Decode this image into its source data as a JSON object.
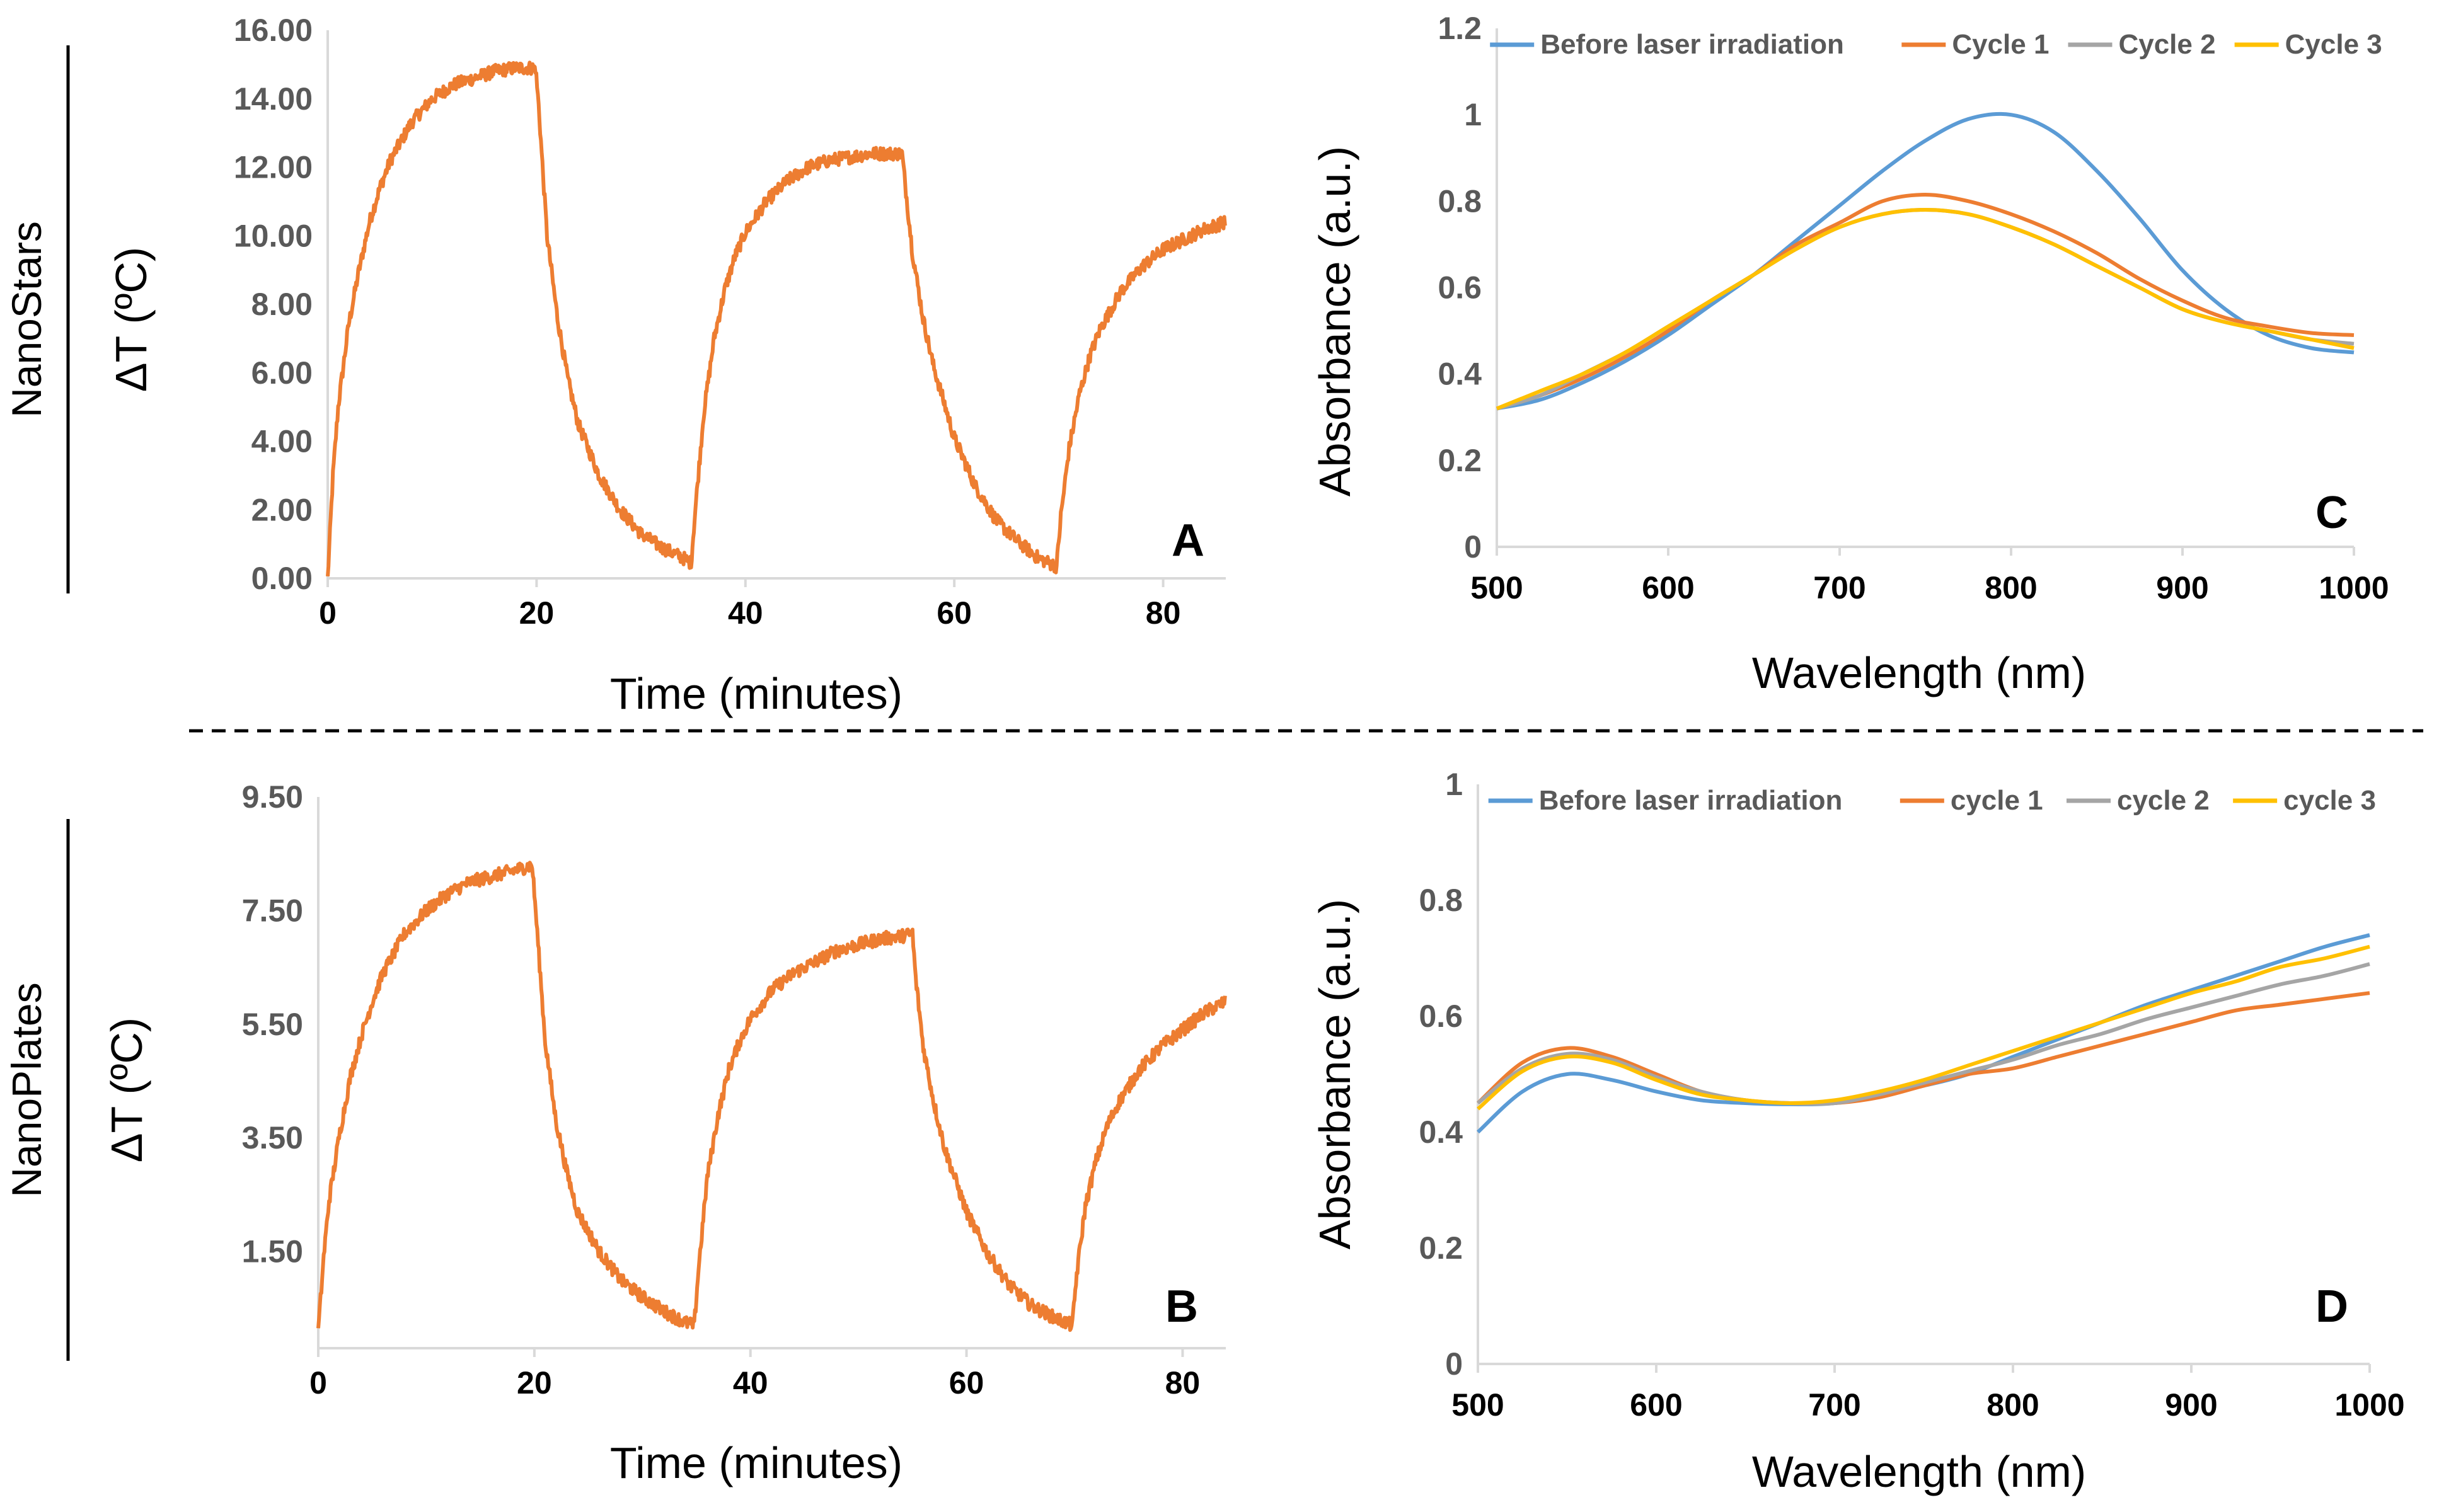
{
  "row_labels": {
    "top": "NanoStars",
    "bottom": "NanoPlates"
  },
  "colors": {
    "heating": "#ED7D31",
    "before": "#5B9BD5",
    "cycle1": "#ED7D31",
    "cycle2": "#A5A5A5",
    "cycle3": "#FFC000",
    "axis": "#D9D9D9",
    "tick_text": "#595959",
    "title_text": "#000000"
  },
  "chart_data": [
    {
      "id": "A",
      "type": "line",
      "panel_letter": "A",
      "xlabel": "Time (minutes)",
      "ylabel": "ΔT (ºC)",
      "xlim": [
        0,
        86
      ],
      "ylim": [
        0,
        16
      ],
      "xticks": [
        0,
        20,
        40,
        60,
        80
      ],
      "xtick_labels": [
        "0",
        "20",
        "40",
        "60",
        "80"
      ],
      "yticks": [
        0,
        2,
        4,
        6,
        8,
        10,
        12,
        14,
        16
      ],
      "ytick_labels": [
        "0.00",
        "2.00",
        "4.00",
        "6.00",
        "8.00",
        "10.00",
        "12.00",
        "14.00",
        "16.00"
      ],
      "series": [
        {
          "name": "ΔT",
          "color": "#ED7D31",
          "x": [
            0,
            0.5,
            1,
            2,
            3,
            4,
            5,
            6,
            8,
            10,
            12,
            14,
            16,
            18,
            19.9,
            20.2,
            21,
            22,
            23,
            24,
            26,
            28,
            30,
            32,
            34,
            34.8,
            35.2,
            36,
            37,
            38,
            39,
            40,
            42,
            44,
            46,
            48,
            50,
            52,
            54,
            55,
            55.3,
            56,
            57,
            58,
            60,
            62,
            64,
            66,
            68,
            69.8,
            70.2,
            71,
            72,
            73,
            74,
            76,
            78,
            80,
            82,
            84,
            86
          ],
          "y": [
            0,
            3.0,
            5.0,
            7.4,
            9.0,
            10.4,
            11.4,
            12.2,
            13.3,
            14.0,
            14.4,
            14.6,
            14.8,
            14.9,
            14.9,
            13.8,
            10.0,
            7.6,
            5.8,
            4.5,
            3.0,
            2.0,
            1.3,
            0.9,
            0.6,
            0.45,
            2.0,
            4.8,
            7.0,
            8.4,
            9.4,
            10.1,
            11.0,
            11.6,
            12.0,
            12.2,
            12.3,
            12.4,
            12.4,
            12.4,
            11.5,
            9.5,
            7.6,
            6.2,
            4.1,
            2.7,
            1.7,
            1.1,
            0.6,
            0.35,
            1.8,
            3.8,
            5.4,
            6.5,
            7.3,
            8.4,
            9.1,
            9.6,
            9.9,
            10.2,
            10.4
          ]
        }
      ]
    },
    {
      "id": "B",
      "type": "line",
      "panel_letter": "B",
      "xlabel": "Time (minutes)",
      "ylabel": "ΔT (ºC)",
      "xlim": [
        0,
        84
      ],
      "ylim": [
        -0.2,
        9.5
      ],
      "xticks": [
        0,
        20,
        40,
        60,
        80
      ],
      "xtick_labels": [
        "0",
        "20",
        "40",
        "60",
        "80"
      ],
      "yticks": [
        1.5,
        3.5,
        5.5,
        7.5,
        9.5
      ],
      "ytick_labels": [
        "1.50",
        "3.50",
        "5.50",
        "7.50",
        "9.50"
      ],
      "series": [
        {
          "name": "ΔT",
          "color": "#ED7D31",
          "x": [
            0,
            0.5,
            1,
            2,
            3,
            4,
            5,
            6,
            8,
            10,
            12,
            14,
            16,
            18,
            19.8,
            20.2,
            21,
            22,
            23,
            24,
            26,
            28,
            30,
            32,
            34,
            34.8,
            35.2,
            36,
            37,
            38,
            39,
            40,
            42,
            44,
            46,
            48,
            50,
            52,
            54,
            55,
            55.3,
            56,
            57,
            58,
            60,
            62,
            64,
            66,
            68,
            69.8,
            70.2,
            71,
            72,
            73,
            74,
            76,
            78,
            80,
            82,
            84
          ],
          "y": [
            0.1,
            1.4,
            2.4,
            3.6,
            4.6,
            5.3,
            5.9,
            6.4,
            7.1,
            7.5,
            7.8,
            8.0,
            8.1,
            8.2,
            8.3,
            7.3,
            5.2,
            3.8,
            2.9,
            2.2,
            1.5,
            1.0,
            0.7,
            0.45,
            0.25,
            0.2,
            1.2,
            2.8,
            3.9,
            4.7,
            5.2,
            5.6,
            6.1,
            6.4,
            6.6,
            6.8,
            6.9,
            7.0,
            7.05,
            7.1,
            6.3,
            5.1,
            4.1,
            3.3,
            2.2,
            1.45,
            0.9,
            0.55,
            0.35,
            0.2,
            1.1,
            2.3,
            3.1,
            3.7,
            4.1,
            4.7,
            5.1,
            5.4,
            5.7,
            5.9
          ]
        }
      ]
    },
    {
      "id": "C",
      "type": "line",
      "panel_letter": "C",
      "xlabel": "Wavelength (nm)",
      "ylabel": "Absorbance (a.u.)",
      "xlim": [
        500,
        1000
      ],
      "ylim": [
        0,
        1.2
      ],
      "xticks": [
        500,
        600,
        700,
        800,
        900,
        1000
      ],
      "xtick_labels": [
        "500",
        "600",
        "700",
        "800",
        "900",
        "1000"
      ],
      "yticks": [
        0,
        0.2,
        0.4,
        0.6,
        0.8,
        1.0,
        1.2
      ],
      "ytick_labels": [
        "0",
        "0.2",
        "0.4",
        "0.6",
        "0.8",
        "1",
        "1.2"
      ],
      "legend": [
        "Before laser irradiation",
        "Cycle 1",
        "Cycle 2",
        "Cycle 3"
      ],
      "legend_position": "top",
      "x": [
        500,
        525,
        550,
        575,
        600,
        625,
        650,
        675,
        700,
        725,
        750,
        775,
        800,
        825,
        850,
        875,
        900,
        925,
        950,
        975,
        1000
      ],
      "series": [
        {
          "name": "Before laser irradiation",
          "color": "#5B9BD5",
          "values": [
            0.32,
            0.34,
            0.38,
            0.43,
            0.49,
            0.56,
            0.63,
            0.71,
            0.79,
            0.87,
            0.94,
            0.99,
            1.0,
            0.96,
            0.87,
            0.76,
            0.64,
            0.55,
            0.49,
            0.46,
            0.45
          ]
        },
        {
          "name": "Cycle 1",
          "color": "#ED7D31",
          "values": [
            0.32,
            0.35,
            0.39,
            0.44,
            0.5,
            0.57,
            0.63,
            0.7,
            0.75,
            0.8,
            0.815,
            0.8,
            0.77,
            0.73,
            0.68,
            0.62,
            0.57,
            0.53,
            0.51,
            0.495,
            0.49
          ]
        },
        {
          "name": "Cycle 2",
          "color": "#A5A5A5",
          "values": [
            0.32,
            0.35,
            0.4,
            0.45,
            0.51,
            0.57,
            0.63,
            0.69,
            0.74,
            0.77,
            0.78,
            0.77,
            0.74,
            0.7,
            0.65,
            0.6,
            0.55,
            0.52,
            0.5,
            0.48,
            0.47
          ]
        },
        {
          "name": "Cycle 3",
          "color": "#FFC000",
          "values": [
            0.32,
            0.36,
            0.4,
            0.45,
            0.51,
            0.57,
            0.63,
            0.69,
            0.74,
            0.77,
            0.78,
            0.77,
            0.74,
            0.7,
            0.65,
            0.6,
            0.55,
            0.52,
            0.5,
            0.48,
            0.46
          ]
        }
      ]
    },
    {
      "id": "D",
      "type": "line",
      "panel_letter": "D",
      "xlabel": "Wavelength (nm)",
      "ylabel": "Absorbance (a.u.)",
      "xlim": [
        500,
        1000
      ],
      "ylim": [
        0,
        1.0
      ],
      "xticks": [
        500,
        600,
        700,
        800,
        900,
        1000
      ],
      "xtick_labels": [
        "500",
        "600",
        "700",
        "800",
        "900",
        "1000"
      ],
      "yticks": [
        0,
        0.2,
        0.4,
        0.6,
        0.8,
        1.0
      ],
      "ytick_labels": [
        "0",
        "0.2",
        "0.4",
        "0.6",
        "0.8",
        "1"
      ],
      "legend": [
        "Before laser irradiation",
        "cycle 1",
        "cycle 2",
        "cycle 3"
      ],
      "legend_position": "top",
      "x": [
        500,
        525,
        550,
        575,
        600,
        625,
        650,
        675,
        700,
        725,
        750,
        775,
        800,
        825,
        850,
        875,
        900,
        925,
        950,
        975,
        1000
      ],
      "series": [
        {
          "name": "Before laser irradiation",
          "color": "#5B9BD5",
          "values": [
            0.4,
            0.47,
            0.5,
            0.49,
            0.47,
            0.455,
            0.45,
            0.448,
            0.45,
            0.465,
            0.48,
            0.5,
            0.53,
            0.56,
            0.59,
            0.62,
            0.645,
            0.67,
            0.695,
            0.72,
            0.74
          ]
        },
        {
          "name": "cycle 1",
          "color": "#ED7D31",
          "values": [
            0.45,
            0.52,
            0.545,
            0.53,
            0.5,
            0.47,
            0.455,
            0.45,
            0.45,
            0.46,
            0.48,
            0.5,
            0.51,
            0.53,
            0.55,
            0.57,
            0.59,
            0.61,
            0.62,
            0.63,
            0.64
          ]
        },
        {
          "name": "cycle 2",
          "color": "#A5A5A5",
          "values": [
            0.45,
            0.51,
            0.535,
            0.525,
            0.495,
            0.47,
            0.455,
            0.45,
            0.45,
            0.465,
            0.485,
            0.505,
            0.525,
            0.55,
            0.57,
            0.595,
            0.615,
            0.635,
            0.655,
            0.67,
            0.69
          ]
        },
        {
          "name": "cycle 3",
          "color": "#FFC000",
          "values": [
            0.44,
            0.505,
            0.53,
            0.52,
            0.49,
            0.465,
            0.455,
            0.45,
            0.455,
            0.47,
            0.49,
            0.515,
            0.54,
            0.565,
            0.59,
            0.615,
            0.64,
            0.66,
            0.685,
            0.7,
            0.72
          ]
        }
      ]
    }
  ]
}
